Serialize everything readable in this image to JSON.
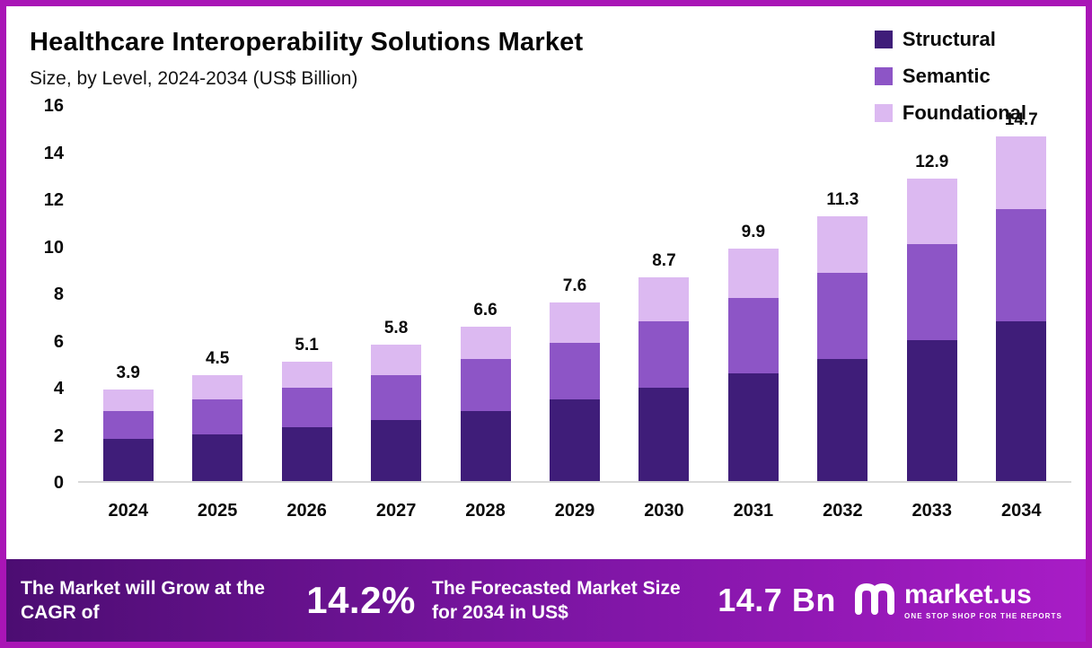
{
  "chart": {
    "title": "Healthcare Interoperability Solutions Market",
    "subtitle": "Size, by Level, 2024-2034 (US$ Billion)"
  },
  "chart_data": {
    "type": "bar",
    "stacked": true,
    "title": "Healthcare Interoperability Solutions Market",
    "subtitle": "Size, by Level, 2024-2034 (US$ Billion)",
    "categories": [
      "2024",
      "2025",
      "2026",
      "2027",
      "2028",
      "2029",
      "2030",
      "2031",
      "2032",
      "2033",
      "2034"
    ],
    "series": [
      {
        "name": "Structural",
        "color": "#3f1d79",
        "values": [
          1.8,
          2.0,
          2.3,
          2.6,
          3.0,
          3.5,
          4.0,
          4.6,
          5.2,
          6.0,
          6.8
        ]
      },
      {
        "name": "Semantic",
        "color": "#8d55c6",
        "values": [
          1.2,
          1.5,
          1.7,
          1.9,
          2.2,
          2.4,
          2.8,
          3.2,
          3.7,
          4.1,
          4.8
        ]
      },
      {
        "name": "Foundational",
        "color": "#dcb9f1",
        "values": [
          0.9,
          1.0,
          1.1,
          1.3,
          1.4,
          1.7,
          1.9,
          2.1,
          2.4,
          2.8,
          3.1
        ]
      }
    ],
    "totals": [
      3.9,
      4.5,
      5.1,
      5.8,
      6.6,
      7.6,
      8.7,
      9.9,
      11.3,
      12.9,
      14.7
    ],
    "ylim": [
      0,
      16
    ],
    "yticks": [
      0,
      2,
      4,
      6,
      8,
      10,
      12,
      14,
      16
    ],
    "legend_position": "top-right",
    "grid": false,
    "colors": {
      "frame": "#a915b6",
      "footer_gradient_start": "#4c0d72",
      "footer_gradient_end": "#a81cc6"
    }
  },
  "footer": {
    "cagr_label": "The Market will Grow at the CAGR of",
    "cagr_value": "14.2%",
    "forecast_label": "The Forecasted Market Size for 2034 in US$",
    "forecast_value": "14.7 Bn",
    "brand": "market.us",
    "brand_tagline": "ONE STOP SHOP FOR THE REPORTS"
  }
}
